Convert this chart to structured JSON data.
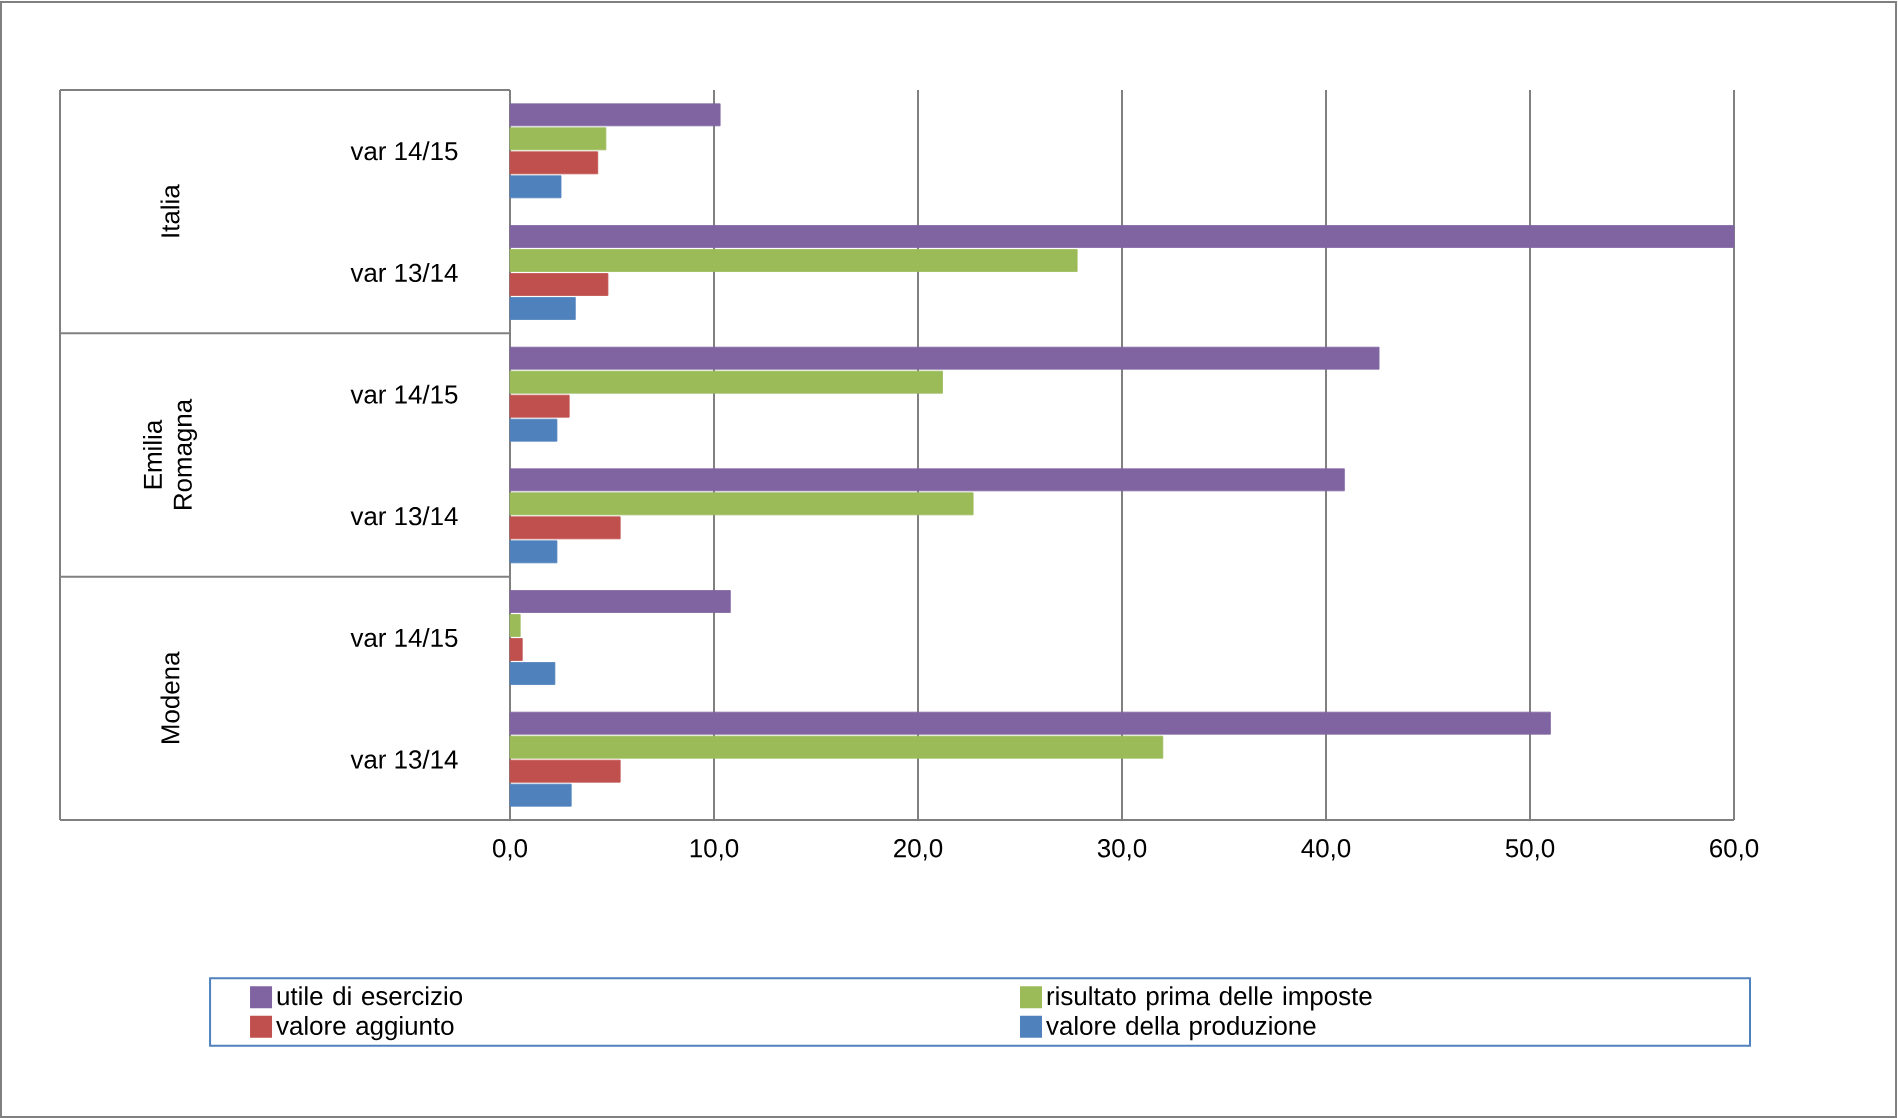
{
  "chart_data": {
    "type": "bar",
    "orientation": "horizontal",
    "categories": [
      "var 14/15",
      "var 13/14",
      "var 14/15",
      "var 13/14",
      "var 14/15",
      "var 13/14"
    ],
    "annotations": [
      "Italia",
      "Emilia Romagna",
      "Modena"
    ],
    "series": [
      {
        "name": "utile di esercizio",
        "color": "#8064a2",
        "values": [
          10.3,
          60.0,
          42.6,
          40.9,
          10.8,
          51.0
        ]
      },
      {
        "name": "risultato prima delle imposte",
        "color": "#9bbb59",
        "values": [
          4.7,
          27.8,
          21.2,
          22.7,
          0.5,
          32.0
        ]
      },
      {
        "name": "valore aggiunto",
        "color": "#c0504d",
        "values": [
          4.3,
          4.8,
          2.9,
          5.4,
          0.6,
          5.4
        ]
      },
      {
        "name": "valore della produzione",
        "color": "#4f81bd",
        "values": [
          2.5,
          3.2,
          2.3,
          2.3,
          2.2,
          3.0
        ]
      }
    ],
    "xlim": [
      0,
      60
    ],
    "xticks": [
      {
        "value": 0,
        "label": "0,0"
      },
      {
        "value": 10,
        "label": "10,0"
      },
      {
        "value": 20,
        "label": "20,0"
      },
      {
        "value": 30,
        "label": "30,0"
      },
      {
        "value": 40,
        "label": "40,0"
      },
      {
        "value": 50,
        "label": "50,0"
      },
      {
        "value": 60,
        "label": "60,0"
      }
    ],
    "grid": "x",
    "legend": "bottom"
  }
}
